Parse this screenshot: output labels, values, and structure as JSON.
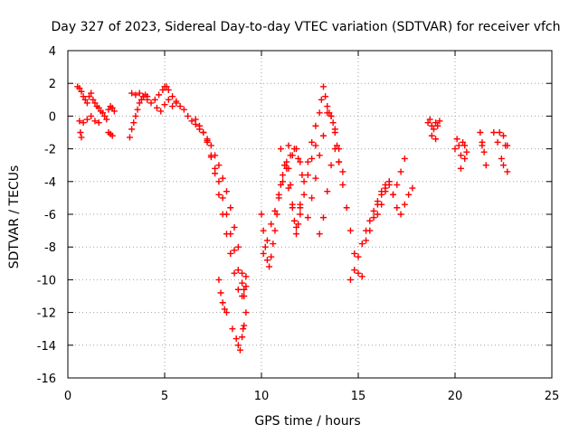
{
  "chart_data": {
    "type": "scatter",
    "title": "Day 327 of 2023, Sidereal Day-to-day VTEC variation (SDTVAR) for receiver vfch",
    "xlabel": "GPS time / hours",
    "ylabel": "SDTVAR / TECUs",
    "xlim": [
      0,
      25
    ],
    "ylim": [
      -16,
      4
    ],
    "xticks": [
      "0",
      "5",
      "10",
      "15",
      "20",
      "25"
    ],
    "yticks": [
      "4",
      "2",
      "0",
      "-2",
      "-4",
      "-6",
      "-8",
      "-10",
      "-12",
      "-14",
      "-16"
    ],
    "grid": true,
    "marker": "plus",
    "color": "#ff0000",
    "series": [
      {
        "name": "SDTVAR",
        "x": [
          0.5,
          0.6,
          0.7,
          0.8,
          0.9,
          1.0,
          1.1,
          1.2,
          1.3,
          1.4,
          1.5,
          1.6,
          1.7,
          1.8,
          1.9,
          2.0,
          2.1,
          2.2,
          2.3,
          2.4,
          0.6,
          0.8,
          1.0,
          1.2,
          1.4,
          1.6,
          0.65,
          0.7,
          2.1,
          2.2,
          2.3,
          3.2,
          3.3,
          3.4,
          3.5,
          3.6,
          3.7,
          3.8,
          3.9,
          4.0,
          4.1,
          3.3,
          3.5,
          3.7,
          3.9,
          4.1,
          4.3,
          4.5,
          4.7,
          4.9,
          5.0,
          5.1,
          5.2,
          5.4,
          5.6,
          5.8,
          6.0,
          4.6,
          4.8,
          5.0,
          5.2,
          5.4,
          5.6,
          6.2,
          6.4,
          6.6,
          6.8,
          7.0,
          7.2,
          7.4,
          7.6,
          7.8,
          8.0,
          8.2,
          8.4,
          8.6,
          8.8,
          9.0,
          9.1,
          9.2,
          6.6,
          6.8,
          7.0,
          7.2,
          7.4,
          7.6,
          7.8,
          8.0,
          8.2,
          8.4,
          8.6,
          8.8,
          9.0,
          9.1,
          9.2,
          7.2,
          7.4,
          7.6,
          7.8,
          8.0,
          8.2,
          8.4,
          8.6,
          8.8,
          9.0,
          9.1,
          9.2,
          7.8,
          7.9,
          8.0,
          8.1,
          8.2,
          8.5,
          8.7,
          8.8,
          8.9,
          9.0,
          9.05,
          9.1,
          10.0,
          10.1,
          10.2,
          10.3,
          10.4,
          10.5,
          10.6,
          10.7,
          10.8,
          10.9,
          11.0,
          11.1,
          11.2,
          11.3,
          11.4,
          11.5,
          11.6,
          11.7,
          11.8,
          11.9,
          12.0,
          10.1,
          10.3,
          10.5,
          10.7,
          10.9,
          11.1,
          11.3,
          11.5,
          11.7,
          11.9,
          12.1,
          11.0,
          11.2,
          11.4,
          11.6,
          11.8,
          12.0,
          12.2,
          12.4,
          12.6,
          12.8,
          12.0,
          12.2,
          12.4,
          12.6,
          12.8,
          13.0,
          13.1,
          13.2,
          13.3,
          13.4,
          13.5,
          13.6,
          13.7,
          13.8,
          13.9,
          14.0,
          12.4,
          12.6,
          12.8,
          13.0,
          13.2,
          13.4,
          13.6,
          13.8,
          14.0,
          14.2,
          13.0,
          13.2,
          13.4,
          13.6,
          13.8,
          14.0,
          14.2,
          14.4,
          14.6,
          14.8,
          15.0,
          15.2,
          14.6,
          14.8,
          15.0,
          15.2,
          15.4,
          15.6,
          15.8,
          16.0,
          16.2,
          16.4,
          16.6,
          15.4,
          15.6,
          15.8,
          16.0,
          16.2,
          16.4,
          16.6,
          16.8,
          17.0,
          17.2,
          17.4,
          17.6,
          17.8,
          16.0,
          16.2,
          16.4,
          16.6,
          16.8,
          17.0,
          17.2,
          17.4,
          11.4,
          11.6,
          11.8,
          12.0,
          18.6,
          18.7,
          18.8,
          18.9,
          19.0,
          19.1,
          19.2,
          18.8,
          19.0,
          20.0,
          20.1,
          20.2,
          20.3,
          20.4,
          20.5,
          20.6,
          20.3,
          20.5,
          21.3,
          21.4,
          21.5,
          21.6,
          21.4,
          22.0,
          22.2,
          22.4,
          22.5,
          22.6,
          22.7,
          22.3,
          22.5,
          22.7
        ],
        "y": [
          1.8,
          1.7,
          1.5,
          1.2,
          1.0,
          0.8,
          1.2,
          1.4,
          1.0,
          0.8,
          0.6,
          0.5,
          0.3,
          0.2,
          0.0,
          -0.2,
          0.4,
          0.6,
          0.5,
          0.3,
          -0.3,
          -0.4,
          -0.2,
          0.0,
          -0.3,
          -0.4,
          -1.0,
          -1.3,
          -1.0,
          -1.1,
          -1.2,
          -1.3,
          -0.8,
          -0.4,
          0.0,
          0.4,
          0.8,
          1.0,
          1.2,
          1.3,
          1.2,
          1.4,
          1.3,
          1.4,
          1.2,
          1.0,
          0.8,
          1.0,
          1.3,
          1.6,
          1.8,
          1.8,
          1.6,
          1.2,
          0.8,
          0.6,
          0.4,
          0.5,
          0.3,
          0.7,
          1.0,
          0.6,
          0.9,
          0.0,
          -0.3,
          -0.5,
          -0.8,
          -1.0,
          -1.4,
          -1.8,
          -2.4,
          -3.0,
          -3.8,
          -4.6,
          -5.6,
          -6.8,
          -8.0,
          -9.6,
          -11.0,
          -12.0,
          -0.2,
          -0.6,
          -1.0,
          -1.6,
          -2.4,
          -3.2,
          -4.0,
          -5.0,
          -6.0,
          -7.2,
          -8.2,
          -9.4,
          -10.2,
          -10.6,
          -10.4,
          -1.5,
          -2.5,
          -3.5,
          -4.8,
          -6.0,
          -7.2,
          -8.4,
          -9.6,
          -10.6,
          -11.0,
          -10.6,
          -9.8,
          -10.0,
          -10.8,
          -11.4,
          -11.8,
          -12.0,
          -13.0,
          -13.6,
          -14.0,
          -14.3,
          -13.5,
          -13.0,
          -12.8,
          -6.0,
          -7.0,
          -8.0,
          -8.8,
          -9.2,
          -8.6,
          -7.8,
          -7.0,
          -6.0,
          -5.0,
          -4.2,
          -3.6,
          -3.0,
          -2.8,
          -3.2,
          -4.2,
          -5.4,
          -6.4,
          -7.2,
          -6.6,
          -5.6,
          -8.4,
          -7.6,
          -6.6,
          -5.8,
          -4.8,
          -4.0,
          -3.2,
          -2.4,
          -2.0,
          -2.6,
          -3.6,
          -2.0,
          -3.0,
          -4.4,
          -5.6,
          -6.8,
          -6.0,
          -4.8,
          -3.6,
          -2.6,
          -1.8,
          -5.4,
          -4.0,
          -2.8,
          -1.6,
          -0.6,
          0.2,
          1.0,
          1.8,
          1.2,
          0.6,
          0.2,
          0.0,
          -0.4,
          -1.0,
          -1.8,
          -2.8,
          -6.2,
          -5.0,
          -3.8,
          -2.4,
          -1.2,
          0.2,
          0.0,
          -0.8,
          -2.0,
          -3.4,
          -7.2,
          -6.2,
          -4.6,
          -3.0,
          -2.0,
          -2.8,
          -4.2,
          -5.6,
          -7.0,
          -8.4,
          -9.6,
          -9.8,
          -10.0,
          -9.4,
          -8.6,
          -7.8,
          -7.0,
          -6.4,
          -5.8,
          -5.2,
          -4.6,
          -4.2,
          -4.0,
          -7.6,
          -7.0,
          -6.2,
          -5.4,
          -4.8,
          -4.4,
          -4.2,
          -4.8,
          -5.6,
          -6.0,
          -5.4,
          -4.8,
          -4.4,
          -6.0,
          -5.4,
          -4.6,
          -4.0,
          -4.8,
          -4.2,
          -3.4,
          -2.6,
          -1.8,
          -2.4,
          -2.0,
          -2.8,
          -0.4,
          -0.2,
          -0.6,
          -0.8,
          -0.4,
          -0.6,
          -0.3,
          -1.2,
          -1.4,
          -2.0,
          -1.4,
          -1.8,
          -2.4,
          -1.6,
          -1.8,
          -2.2,
          -3.2,
          -2.6,
          -1.0,
          -1.8,
          -2.2,
          -3.0,
          -1.6,
          -1.0,
          -1.6,
          -2.6,
          -3.0,
          -1.8,
          -3.4,
          -1.0,
          -1.2,
          -1.8
        ]
      }
    ]
  }
}
